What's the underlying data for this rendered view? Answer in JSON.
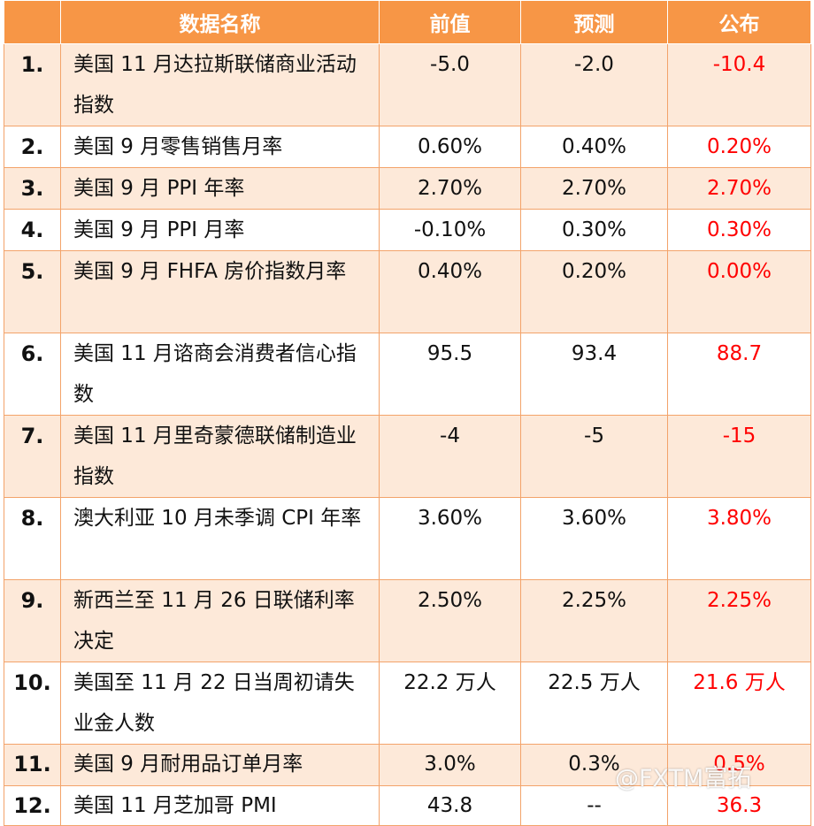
{
  "header": {
    "name": "数据名称",
    "prev": "前值",
    "forecast": "预测",
    "actual": "公布"
  },
  "rows": [
    {
      "idx": "1.",
      "name": "美国 11 月达拉斯联储商业活动指数",
      "prev": "-5.0",
      "forecast": "-2.0",
      "actual": "-10.4"
    },
    {
      "idx": "2.",
      "name": "美国 9 月零售销售月率",
      "prev": "0.60%",
      "forecast": "0.40%",
      "actual": "0.20%"
    },
    {
      "idx": "3.",
      "name": "美国 9 月 PPI 年率",
      "prev": "2.70%",
      "forecast": "2.70%",
      "actual": "2.70%"
    },
    {
      "idx": "4.",
      "name": "美国 9 月 PPI 月率",
      "prev": "-0.10%",
      "forecast": "0.30%",
      "actual": "0.30%"
    },
    {
      "idx": "5.",
      "name": "美国 9 月 FHFA 房价指数月率",
      "prev": "0.40%",
      "forecast": "0.20%",
      "actual": "0.00%"
    },
    {
      "idx": "6.",
      "name": "美国 11 月谘商会消费者信心指数",
      "prev": "95.5",
      "forecast": "93.4",
      "actual": "88.7"
    },
    {
      "idx": "7.",
      "name": "美国 11 月里奇蒙德联储制造业指数",
      "prev": "-4",
      "forecast": "-5",
      "actual": "-15"
    },
    {
      "idx": "8.",
      "name": "澳大利亚 10 月未季调 CPI 年率",
      "prev": "3.60%",
      "forecast": "3.60%",
      "actual": "3.80%"
    },
    {
      "idx": "9.",
      "name": "新西兰至 11 月 26 日联储利率决定",
      "prev": "2.50%",
      "forecast": "2.25%",
      "actual": "2.25%"
    },
    {
      "idx": "10.",
      "name": "美国至 11 月 22 日当周初请失业金人数",
      "prev": "22.2 万人",
      "forecast": "22.5 万人",
      "actual": "21.6 万人"
    },
    {
      "idx": "11.",
      "name": "美国 9 月耐用品订单月率",
      "prev": "3.0%",
      "forecast": "0.3%",
      "actual": "0.5%"
    },
    {
      "idx": "12.",
      "name": "美国 11 月芝加哥 PMI",
      "prev": "43.8",
      "forecast": "--",
      "actual": "36.3"
    }
  ],
  "watermark": "@FXTM富拓",
  "colors": {
    "header_bg": "#f79646",
    "odd_row_bg": "#fde9d9",
    "actual_text": "#ff0000"
  }
}
